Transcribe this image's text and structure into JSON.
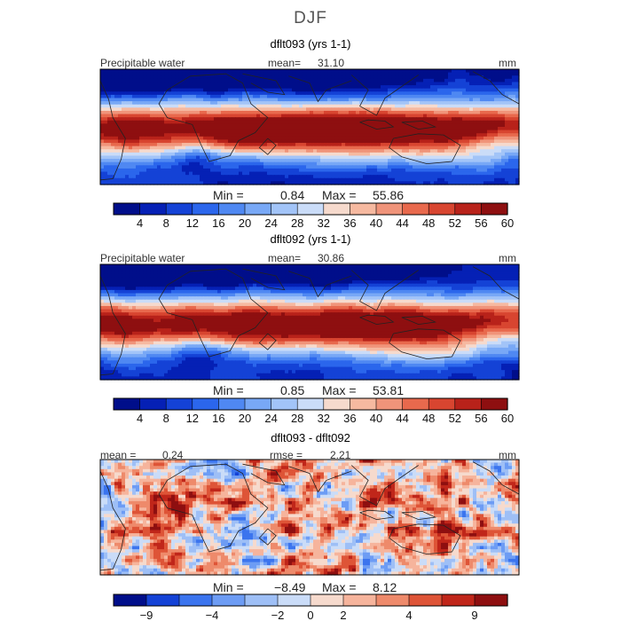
{
  "title": "DJF",
  "colors": {
    "abs": [
      "#000e8a",
      "#0520b5",
      "#1442d6",
      "#2b66ec",
      "#4f88f2",
      "#78a8f6",
      "#a2c4f8",
      "#cadcf8",
      "#f6dacd",
      "#f6b9a0",
      "#f0947a",
      "#e8694d",
      "#d84530",
      "#b8221a",
      "#8e0f10"
    ],
    "diff": [
      "#000e8a",
      "#1442d6",
      "#3b74ee",
      "#6d9cf4",
      "#9ebff6",
      "#cadcf8",
      "#f6dacd",
      "#f6b49c",
      "#ee8a6b",
      "#de5437",
      "#c0261a",
      "#8e0f10"
    ],
    "land_outline": "#222222",
    "frame": "#000000"
  },
  "panels": [
    {
      "title": "dflt093 (yrs 1-1)",
      "field": "Precipitable water",
      "mean_label": "mean=",
      "mean": "31.10",
      "units": "mm",
      "min_label": "Min =",
      "min": "0.84",
      "max_label": "Max =",
      "max": "55.86"
    },
    {
      "title": "dflt092 (yrs 1-1)",
      "field": "Precipitable water",
      "mean_label": "mean=",
      "mean": "30.86",
      "units": "mm",
      "min_label": "Min =",
      "min": "0.85",
      "max_label": "Max =",
      "max": "53.81"
    },
    {
      "title": "dflt093 - dflt092",
      "mean_label": "mean =",
      "mean": "0.24",
      "rmse_label": "rmse =",
      "rmse": "2.21",
      "units": "mm",
      "min_label": "Min =",
      "min": "−8.49",
      "max_label": "Max =",
      "max": "8.12"
    }
  ],
  "chart_data": [
    {
      "type": "heatmap",
      "title": "dflt093 (yrs 1-1)",
      "variable": "Precipitable water",
      "units": "mm",
      "mean": 31.1,
      "min": 0.84,
      "max": 55.86,
      "levels": [
        4,
        8,
        12,
        16,
        20,
        24,
        28,
        32,
        36,
        40,
        44,
        48,
        52,
        56,
        60
      ],
      "colorbar_ticks": [
        "4",
        "8",
        "12",
        "16",
        "20",
        "24",
        "28",
        "32",
        "36",
        "40",
        "44",
        "48",
        "52",
        "56",
        "60"
      ]
    },
    {
      "type": "heatmap",
      "title": "dflt092 (yrs 1-1)",
      "variable": "Precipitable water",
      "units": "mm",
      "mean": 30.86,
      "min": 0.85,
      "max": 53.81,
      "levels": [
        4,
        8,
        12,
        16,
        20,
        24,
        28,
        32,
        36,
        40,
        44,
        48,
        52,
        56,
        60
      ],
      "colorbar_ticks": [
        "4",
        "8",
        "12",
        "16",
        "20",
        "24",
        "28",
        "32",
        "36",
        "40",
        "44",
        "48",
        "52",
        "56",
        "60"
      ]
    },
    {
      "type": "heatmap",
      "title": "dflt093 - dflt092",
      "units": "mm",
      "mean": 0.24,
      "rmse": 2.21,
      "min": -8.49,
      "max": 8.12,
      "levels": [
        -9,
        -6,
        -4,
        -3,
        -2,
        -1,
        0,
        1,
        2,
        3,
        4,
        6,
        9
      ],
      "colorbar_ticks": [
        "−9",
        "−4",
        "−2",
        "0",
        "2",
        "4",
        "9"
      ]
    }
  ]
}
